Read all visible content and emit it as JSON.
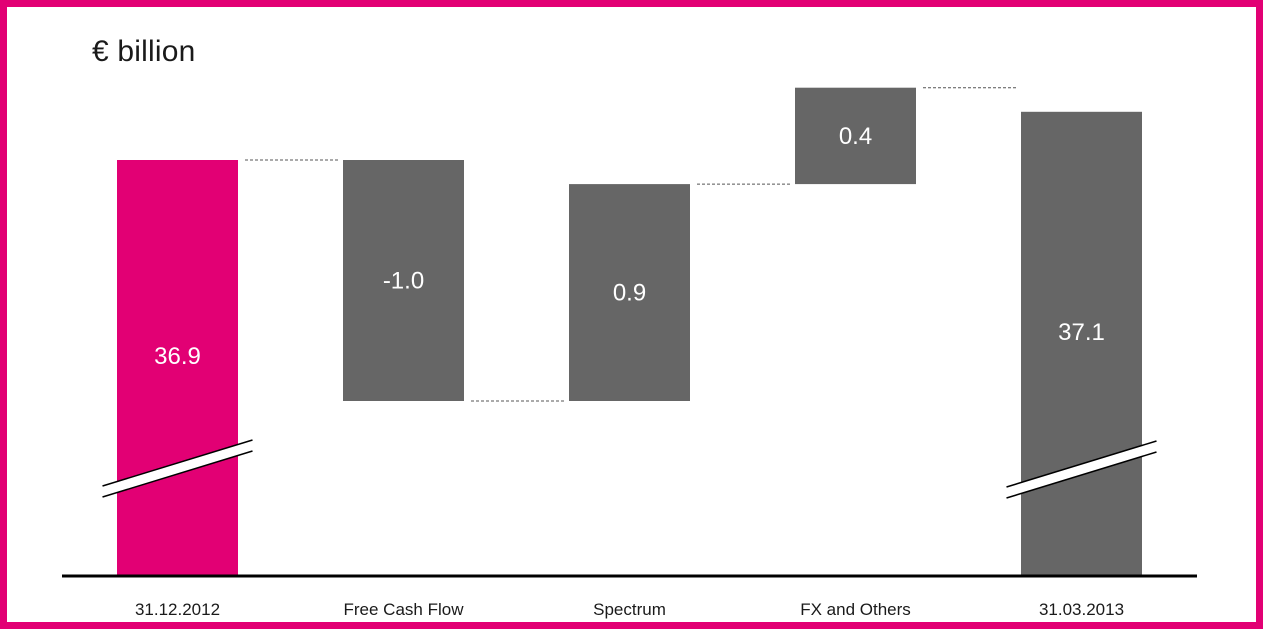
{
  "unit_label": "€ billion",
  "chart_data": {
    "type": "bar",
    "subtype": "waterfall",
    "categories": [
      "31.12.2012",
      "Free Cash Flow",
      "Spectrum",
      "FX and Others",
      "31.03.2013"
    ],
    "values": [
      36.9,
      -1.0,
      0.9,
      0.4,
      37.1
    ],
    "value_labels": [
      "36.9",
      "-1.0",
      "0.9",
      "0.4",
      "37.1"
    ],
    "kinds": [
      "total",
      "delta",
      "delta",
      "delta",
      "total"
    ],
    "axis_break": true,
    "colors": {
      "total_start": "#e20074",
      "bars": "#666666",
      "frame": "#e20074",
      "baseline": "#000000",
      "connector": "#555555"
    },
    "gridlines": false,
    "legend": "none"
  }
}
